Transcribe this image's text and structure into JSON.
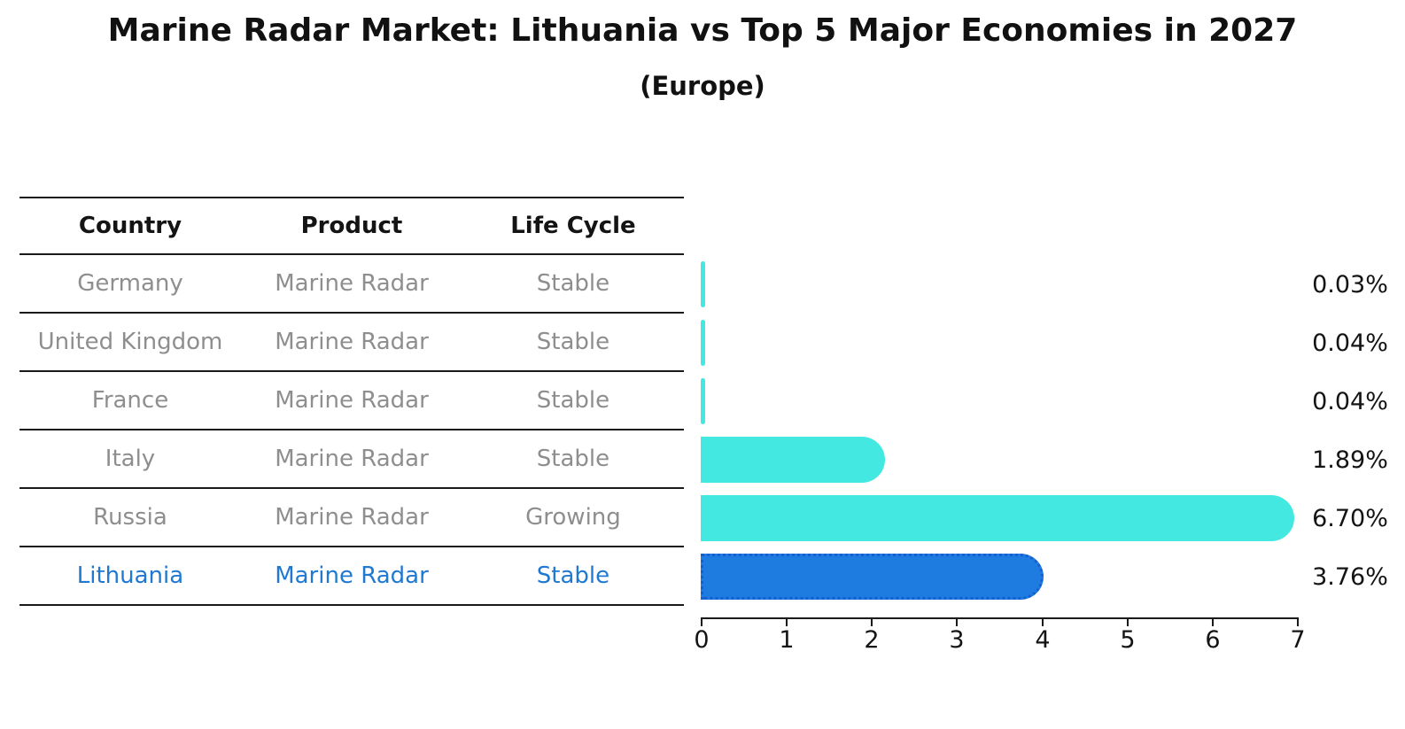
{
  "header": {
    "title": "Marine Radar Market: Lithuania vs Top 5 Major Economies in 2027",
    "subtitle": "(Europe)"
  },
  "table": {
    "headers": [
      "Country",
      "Product",
      "Life Cycle"
    ],
    "rows": [
      {
        "country": "Germany",
        "product": "Marine Radar",
        "life_cycle": "Stable",
        "highlight": false
      },
      {
        "country": "United Kingdom",
        "product": "Marine Radar",
        "life_cycle": "Stable",
        "highlight": false
      },
      {
        "country": "France",
        "product": "Marine Radar",
        "life_cycle": "Stable",
        "highlight": false
      },
      {
        "country": "Italy",
        "product": "Marine Radar",
        "life_cycle": "Stable",
        "highlight": false
      },
      {
        "country": "Russia",
        "product": "Marine Radar",
        "life_cycle": "Growing",
        "highlight": false
      },
      {
        "country": "Lithuania",
        "product": "Marine Radar",
        "life_cycle": "Stable",
        "highlight": true
      }
    ]
  },
  "chart_data": {
    "type": "bar",
    "orientation": "horizontal",
    "title": "Marine Radar Market: Lithuania vs Top 5 Major Economies in 2027 (Europe)",
    "categories": [
      "Germany",
      "United Kingdom",
      "France",
      "Italy",
      "Russia",
      "Lithuania"
    ],
    "values": [
      0.03,
      0.04,
      0.04,
      1.89,
      6.7,
      3.76
    ],
    "value_labels": [
      "0.03%",
      "0.04%",
      "0.04%",
      "1.89%",
      "6.70%",
      "3.76%"
    ],
    "x_ticks": [
      0,
      1,
      2,
      3,
      4,
      5,
      6,
      7
    ],
    "xlim": [
      0,
      7
    ],
    "xlabel": "",
    "ylabel": "",
    "grid": false,
    "legend": false,
    "highlight_index": 5
  },
  "colors": {
    "bar_default": "#43e8e1",
    "bar_highlight": "#1e7bdf",
    "bar_highlight_border": "#1460d2",
    "highlight_text": "#1f78d1",
    "muted_text": "#8e8e8e",
    "heading_text": "#141414",
    "line": "#1a1a1a"
  }
}
